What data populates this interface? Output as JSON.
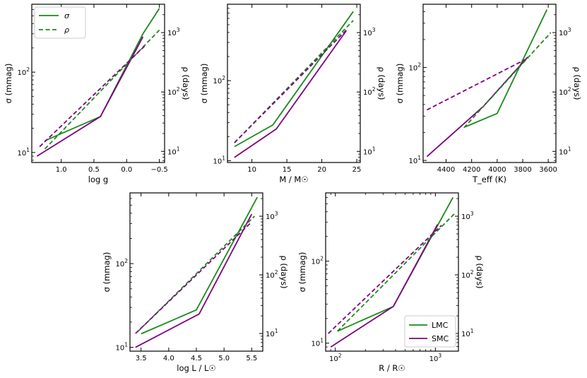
{
  "colors": {
    "LMC": "#1a8a1a",
    "SMC": "#800080"
  },
  "legend_main": {
    "sigma": "σ",
    "rho": "ρ"
  },
  "legend_group": {
    "LMC": "LMC",
    "SMC": "SMC"
  },
  "chart_data": [
    {
      "type": "line",
      "id": "logg",
      "xlabel": "log  g",
      "xlim": [
        1.45,
        -0.58
      ],
      "xticks": [
        1.0,
        0.5,
        0.0,
        -0.5
      ],
      "xtick_labels": [
        "1.0",
        "0.5",
        "0.0",
        "−0.5"
      ],
      "ylabel_left": "σ  (mmag)",
      "ylim_left": [
        7.5,
        700
      ],
      "ylabel_right": "ρ  (days)",
      "ylim_right": [
        6.5,
        3000
      ],
      "legend": "top-left",
      "series": [
        {
          "name": "LMC σ",
          "axis": "left",
          "style": "solid",
          "x": [
            1.25,
            0.4,
            -0.25,
            -0.5
          ],
          "y": [
            14,
            28,
            300,
            620
          ]
        },
        {
          "name": "SMC σ",
          "axis": "left",
          "style": "solid",
          "x": [
            1.37,
            0.4,
            -0.25
          ],
          "y": [
            9,
            28,
            275
          ]
        },
        {
          "name": "LMC ρ",
          "axis": "right",
          "style": "dashed",
          "x": [
            1.25,
            -0.5
          ],
          "y": [
            11,
            1100
          ]
        },
        {
          "name": "SMC ρ",
          "axis": "right",
          "style": "dashed",
          "x": [
            1.33,
            -0.28
          ],
          "y": [
            12,
            600
          ]
        }
      ]
    },
    {
      "type": "line",
      "id": "mass",
      "xlabel": "M / M☉",
      "xlim": [
        6.5,
        25.5
      ],
      "xticks": [
        10,
        15,
        20,
        25
      ],
      "xtick_labels": [
        "10",
        "15",
        "20",
        "25"
      ],
      "ylabel_left": "σ  (mmag)",
      "ylim_left": [
        9.5,
        900
      ],
      "ylabel_right": "ρ  (days)",
      "ylim_right": [
        6.5,
        3000
      ],
      "series": [
        {
          "name": "LMC σ",
          "axis": "left",
          "style": "solid",
          "x": [
            7.5,
            13,
            24.5
          ],
          "y": [
            15,
            28,
            730
          ]
        },
        {
          "name": "SMC σ",
          "axis": "left",
          "style": "solid",
          "x": [
            7.5,
            13.5,
            23.5
          ],
          "y": [
            11,
            25,
            420
          ]
        },
        {
          "name": "LMC ρ",
          "axis": "right",
          "style": "dashed",
          "x": [
            7.5,
            24.5
          ],
          "y": [
            14,
            1600
          ]
        },
        {
          "name": "SMC ρ",
          "axis": "right",
          "style": "dashed",
          "x": [
            7.5,
            23.5
          ],
          "y": [
            14,
            1100
          ]
        }
      ]
    },
    {
      "type": "line",
      "id": "teff",
      "xlabel": "T_eff  (K)",
      "xlim": [
        4580,
        3540
      ],
      "xticks": [
        4400,
        4200,
        4000,
        3800,
        3600
      ],
      "xtick_labels": [
        "4400",
        "4200",
        "4000",
        "3800",
        "3600"
      ],
      "ylabel_left": "σ  (mmag)",
      "ylim_left": [
        9.5,
        480
      ],
      "ylabel_right": "ρ  (days)",
      "ylim_right": [
        6.5,
        3000
      ],
      "series": [
        {
          "name": "LMC σ",
          "axis": "left",
          "style": "solid",
          "x": [
            4250,
            4000,
            3610
          ],
          "y": [
            23,
            32,
            420
          ]
        },
        {
          "name": "SMC σ",
          "axis": "left",
          "style": "solid",
          "x": [
            4550,
            4110,
            3760
          ],
          "y": [
            11,
            38,
            130
          ]
        },
        {
          "name": "LMC ρ",
          "axis": "right",
          "style": "dashed",
          "x": [
            4260,
            3580
          ],
          "y": [
            25,
            1000
          ]
        },
        {
          "name": "SMC ρ",
          "axis": "right",
          "style": "dashed",
          "x": [
            4550,
            3760
          ],
          "y": [
            50,
            370
          ]
        }
      ]
    },
    {
      "type": "line",
      "id": "lum",
      "xlabel": "log  L / L☉",
      "xlim": [
        3.3,
        5.7
      ],
      "xticks": [
        3.5,
        4.0,
        4.5,
        5.0,
        5.5
      ],
      "xtick_labels": [
        "3.5",
        "4.0",
        "4.5",
        "5.0",
        "5.5"
      ],
      "ylabel_left": "σ  (mmag)",
      "ylim_left": [
        9.0,
        700
      ],
      "ylabel_right": "ρ  (days)",
      "ylim_right": [
        5.0,
        2500
      ],
      "series": [
        {
          "name": "LMC σ",
          "axis": "left",
          "style": "solid",
          "x": [
            3.5,
            4.5,
            5.6
          ],
          "y": [
            14.5,
            28,
            620
          ]
        },
        {
          "name": "SMC σ",
          "axis": "left",
          "style": "solid",
          "x": [
            3.4,
            4.55,
            5.5
          ],
          "y": [
            10,
            25,
            390
          ]
        },
        {
          "name": "LMC ρ",
          "axis": "right",
          "style": "dashed",
          "x": [
            3.45,
            5.55
          ],
          "y": [
            11,
            1000
          ]
        },
        {
          "name": "SMC ρ",
          "axis": "right",
          "style": "dashed",
          "x": [
            3.4,
            5.5
          ],
          "y": [
            10,
            800
          ]
        }
      ]
    },
    {
      "type": "line",
      "id": "radius",
      "xlabel": "R / R☉",
      "xlim": [
        80,
        1700
      ],
      "xscale": "log",
      "xticks": [
        100,
        1000
      ],
      "xtick_labels": [
        "10²",
        "10³"
      ],
      "ylabel_left": "σ  (mmag)",
      "ylim_left": [
        8.0,
        680
      ],
      "ylabel_right": "ρ  (days)",
      "ylim_right": [
        5.0,
        2500
      ],
      "legend": "bottom-right",
      "series": [
        {
          "name": "LMC σ",
          "axis": "left",
          "style": "solid",
          "x": [
            105,
            380,
            1500
          ],
          "y": [
            14,
            28,
            600
          ]
        },
        {
          "name": "SMC σ",
          "axis": "left",
          "style": "solid",
          "x": [
            90,
            380,
            1050
          ],
          "y": [
            9,
            28,
            280
          ]
        },
        {
          "name": "LMC ρ",
          "axis": "right",
          "style": "dashed",
          "x": [
            105,
            1550
          ],
          "y": [
            11,
            1100
          ]
        },
        {
          "name": "SMC ρ",
          "axis": "right",
          "style": "dashed",
          "x": [
            85,
            1150
          ],
          "y": [
            10,
            700
          ]
        }
      ]
    }
  ]
}
